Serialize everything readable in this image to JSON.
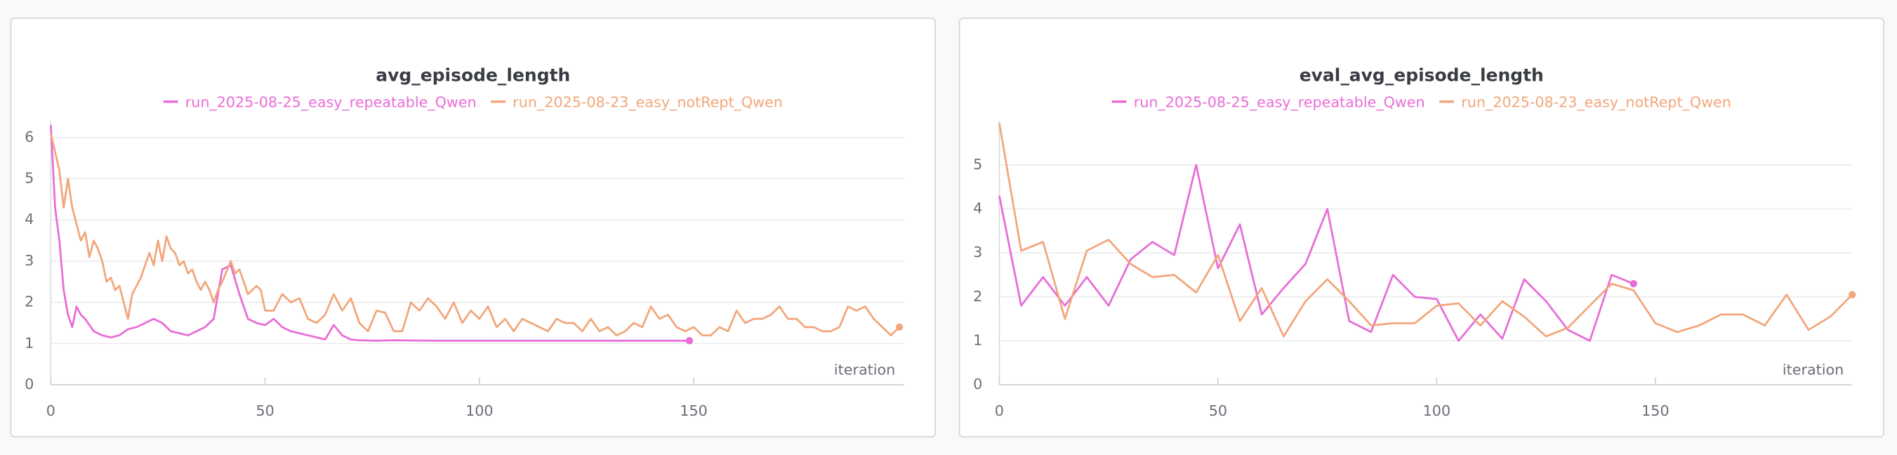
{
  "chart_data": [
    {
      "type": "line",
      "title": "avg_episode_length",
      "xlabel": "iteration",
      "xlim": [
        0,
        199
      ],
      "ylim": [
        0,
        6.4
      ],
      "xticks": [
        0,
        50,
        100,
        150
      ],
      "yticks": [
        0,
        1,
        2,
        3,
        4,
        5,
        6
      ],
      "grid": true,
      "series": [
        {
          "name": "run_2025-08-25_easy_repeatable_Qwen",
          "color": "#e96cd7",
          "x": [
            0,
            1,
            2,
            3,
            4,
            5,
            6,
            7,
            8,
            10,
            12,
            14,
            16,
            18,
            20,
            22,
            24,
            26,
            28,
            30,
            32,
            34,
            36,
            38,
            40,
            42,
            44,
            46,
            48,
            50,
            52,
            54,
            56,
            58,
            60,
            62,
            64,
            66,
            68,
            70,
            72,
            76,
            80,
            90,
            100,
            120,
            149
          ],
          "values": [
            6.3,
            4.3,
            3.5,
            2.3,
            1.7,
            1.4,
            1.9,
            1.7,
            1.6,
            1.3,
            1.2,
            1.15,
            1.2,
            1.35,
            1.4,
            1.5,
            1.6,
            1.5,
            1.3,
            1.25,
            1.2,
            1.3,
            1.4,
            1.6,
            2.8,
            2.9,
            2.2,
            1.6,
            1.5,
            1.45,
            1.6,
            1.4,
            1.3,
            1.25,
            1.2,
            1.15,
            1.1,
            1.45,
            1.2,
            1.1,
            1.08,
            1.07,
            1.08,
            1.07,
            1.07,
            1.07,
            1.07
          ]
        },
        {
          "name": "run_2025-08-23_easy_notRept_Qwen",
          "color": "#f2a67a",
          "x": [
            0,
            2,
            3,
            4,
            5,
            7,
            8,
            9,
            10,
            11,
            12,
            13,
            14,
            15,
            16,
            17,
            18,
            19,
            21,
            23,
            24,
            25,
            26,
            27,
            28,
            29,
            30,
            31,
            32,
            33,
            34,
            35,
            36,
            37,
            38,
            39,
            40,
            42,
            43,
            44,
            46,
            48,
            49,
            50,
            52,
            54,
            56,
            58,
            60,
            62,
            64,
            66,
            68,
            70,
            72,
            74,
            76,
            78,
            80,
            82,
            84,
            86,
            88,
            90,
            92,
            94,
            96,
            98,
            100,
            102,
            104,
            106,
            108,
            110,
            112,
            114,
            116,
            118,
            120,
            122,
            124,
            126,
            128,
            130,
            132,
            134,
            136,
            138,
            140,
            142,
            144,
            146,
            148,
            150,
            152,
            154,
            156,
            158,
            160,
            162,
            164,
            166,
            168,
            170,
            172,
            174,
            176,
            178,
            180,
            182,
            184,
            186,
            188,
            190,
            192,
            194,
            196,
            198
          ],
          "values": [
            6.1,
            5.2,
            4.3,
            5.0,
            4.3,
            3.5,
            3.7,
            3.1,
            3.5,
            3.3,
            3.0,
            2.5,
            2.6,
            2.3,
            2.4,
            2.0,
            1.6,
            2.2,
            2.6,
            3.2,
            2.9,
            3.5,
            3.0,
            3.6,
            3.3,
            3.2,
            2.9,
            3.0,
            2.7,
            2.8,
            2.5,
            2.3,
            2.5,
            2.3,
            2.0,
            2.3,
            2.5,
            3.0,
            2.7,
            2.8,
            2.2,
            2.4,
            2.3,
            1.8,
            1.8,
            2.2,
            2.0,
            2.1,
            1.6,
            1.5,
            1.7,
            2.2,
            1.8,
            2.1,
            1.5,
            1.3,
            1.8,
            1.75,
            1.3,
            1.3,
            2.0,
            1.8,
            2.1,
            1.9,
            1.6,
            2.0,
            1.5,
            1.8,
            1.6,
            1.9,
            1.4,
            1.6,
            1.3,
            1.6,
            1.5,
            1.4,
            1.3,
            1.6,
            1.5,
            1.5,
            1.3,
            1.6,
            1.3,
            1.4,
            1.2,
            1.3,
            1.5,
            1.4,
            1.9,
            1.6,
            1.7,
            1.4,
            1.3,
            1.4,
            1.2,
            1.2,
            1.4,
            1.3,
            1.8,
            1.5,
            1.6,
            1.6,
            1.7,
            1.9,
            1.6,
            1.6,
            1.4,
            1.4,
            1.3,
            1.3,
            1.4,
            1.9,
            1.8,
            1.9,
            1.6,
            1.4,
            1.2,
            1.4
          ]
        }
      ]
    },
    {
      "type": "line",
      "title": "eval_avg_episode_length",
      "xlabel": "iteration",
      "xlim": [
        0,
        195
      ],
      "ylim": [
        0,
        6
      ],
      "xticks": [
        0,
        50,
        100,
        150
      ],
      "yticks": [
        0,
        1,
        2,
        3,
        4,
        5
      ],
      "grid": true,
      "series": [
        {
          "name": "run_2025-08-25_easy_repeatable_Qwen",
          "color": "#e96cd7",
          "x": [
            0,
            5,
            10,
            15,
            20,
            25,
            30,
            35,
            40,
            45,
            50,
            55,
            60,
            65,
            70,
            75,
            80,
            85,
            90,
            95,
            100,
            105,
            110,
            115,
            120,
            125,
            130,
            135,
            140,
            145
          ],
          "values": [
            4.3,
            1.8,
            2.45,
            1.8,
            2.45,
            1.8,
            2.85,
            3.25,
            2.95,
            5.0,
            2.65,
            3.65,
            1.6,
            2.2,
            2.75,
            4.0,
            1.45,
            1.2,
            2.5,
            2.0,
            1.95,
            1.0,
            1.6,
            1.05,
            2.4,
            1.9,
            1.25,
            1.0,
            2.5,
            2.3
          ]
        },
        {
          "name": "run_2025-08-23_easy_notRept_Qwen",
          "color": "#f2a67a",
          "x": [
            0,
            5,
            10,
            15,
            20,
            25,
            30,
            35,
            40,
            45,
            50,
            55,
            60,
            65,
            70,
            75,
            80,
            85,
            90,
            95,
            100,
            105,
            110,
            115,
            120,
            125,
            130,
            135,
            140,
            145,
            150,
            155,
            160,
            165,
            170,
            175,
            180,
            185,
            190,
            195
          ],
          "values": [
            5.95,
            3.05,
            3.25,
            1.5,
            3.05,
            3.3,
            2.75,
            2.45,
            2.5,
            2.1,
            2.95,
            1.45,
            2.2,
            1.1,
            1.9,
            2.4,
            1.9,
            1.35,
            1.4,
            1.4,
            1.8,
            1.85,
            1.35,
            1.9,
            1.55,
            1.1,
            1.3,
            1.8,
            2.3,
            2.15,
            1.4,
            1.2,
            1.35,
            1.6,
            1.6,
            1.35,
            2.05,
            1.25,
            1.55,
            2.05
          ]
        }
      ]
    }
  ]
}
